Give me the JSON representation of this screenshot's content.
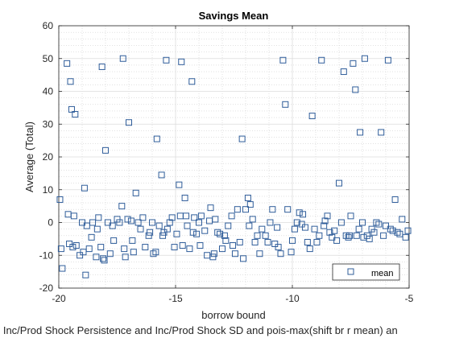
{
  "chart_data": {
    "type": "scatter",
    "title": "Savings Mean",
    "xlabel": "borrow bound",
    "ylabel": "Average (Total)",
    "footer": "d Inc/Prod Shock Persistence and Inc/Prod Shock SD and pois-max(shift br r mean) an",
    "xlim": [
      -20,
      -5
    ],
    "ylim": [
      -20,
      60
    ],
    "xticks": [
      -20,
      -15,
      -10,
      -5
    ],
    "yticks": [
      -20,
      -10,
      0,
      10,
      20,
      30,
      40,
      50,
      60
    ],
    "grid": true,
    "minor_grid": true,
    "legend": {
      "location": "bottom-right",
      "entries": [
        "mean"
      ]
    },
    "marker": "square",
    "color": "#2f5d9a",
    "series": [
      {
        "name": "mean",
        "points": [
          [
            -19.95,
            7
          ],
          [
            -19.9,
            -8
          ],
          [
            -19.85,
            -14
          ],
          [
            -19.65,
            48.5
          ],
          [
            -19.6,
            2.5
          ],
          [
            -19.55,
            -6.5
          ],
          [
            -19.5,
            43
          ],
          [
            -19.45,
            34.5
          ],
          [
            -19.4,
            -7.5
          ],
          [
            -19.35,
            2
          ],
          [
            -19.3,
            33
          ],
          [
            -19.25,
            -7
          ],
          [
            -19.1,
            -10
          ],
          [
            -19.0,
            0
          ],
          [
            -18.95,
            -9
          ],
          [
            -18.9,
            10.5
          ],
          [
            -18.85,
            -16
          ],
          [
            -18.8,
            -1
          ],
          [
            -18.7,
            -8
          ],
          [
            -18.6,
            -4.5
          ],
          [
            -18.55,
            0
          ],
          [
            -18.4,
            -10.5
          ],
          [
            -18.35,
            -2
          ],
          [
            -18.3,
            1.5
          ],
          [
            -18.2,
            -7.5
          ],
          [
            -18.15,
            47.5
          ],
          [
            -18.1,
            -11
          ],
          [
            -18.05,
            -11.5
          ],
          [
            -18.0,
            22
          ],
          [
            -17.9,
            0
          ],
          [
            -17.8,
            -9.5
          ],
          [
            -17.7,
            -1
          ],
          [
            -17.65,
            -5.5
          ],
          [
            -17.5,
            1
          ],
          [
            -17.4,
            0
          ],
          [
            -17.3,
            5
          ],
          [
            -17.25,
            50
          ],
          [
            -17.2,
            -8
          ],
          [
            -17.15,
            -10.5
          ],
          [
            -17.05,
            1
          ],
          [
            -17.0,
            30.5
          ],
          [
            -16.9,
            0.5
          ],
          [
            -16.85,
            -5.5
          ],
          [
            -16.8,
            -9
          ],
          [
            -16.7,
            9
          ],
          [
            -16.6,
            0
          ],
          [
            -16.5,
            -2
          ],
          [
            -16.4,
            1.5
          ],
          [
            -16.3,
            -7.5
          ],
          [
            -16.15,
            -4
          ],
          [
            -16.1,
            -3
          ],
          [
            -16.0,
            0
          ],
          [
            -15.95,
            -9.5
          ],
          [
            -15.85,
            -9
          ],
          [
            -15.8,
            25.5
          ],
          [
            -15.7,
            -1
          ],
          [
            -15.6,
            14.5
          ],
          [
            -15.55,
            -4
          ],
          [
            -15.5,
            -3
          ],
          [
            -15.4,
            49.5
          ],
          [
            -15.35,
            -2
          ],
          [
            -15.25,
            0
          ],
          [
            -15.15,
            1.5
          ],
          [
            -15.05,
            -7.5
          ],
          [
            -14.95,
            -3.5
          ],
          [
            -14.85,
            11.5
          ],
          [
            -14.8,
            2
          ],
          [
            -14.75,
            49
          ],
          [
            -14.7,
            -7
          ],
          [
            -14.6,
            7.5
          ],
          [
            -14.55,
            2
          ],
          [
            -14.5,
            -1
          ],
          [
            -14.4,
            -8
          ],
          [
            -14.3,
            43
          ],
          [
            -14.25,
            -3
          ],
          [
            -14.2,
            1.5
          ],
          [
            -14.1,
            -3.5
          ],
          [
            -14.0,
            0
          ],
          [
            -13.95,
            -7
          ],
          [
            -13.9,
            2
          ],
          [
            -13.75,
            -2.5
          ],
          [
            -13.65,
            -10
          ],
          [
            -13.55,
            0.5
          ],
          [
            -13.5,
            4.5
          ],
          [
            -13.4,
            -10.5
          ],
          [
            -13.35,
            -9.5
          ],
          [
            -13.3,
            1
          ],
          [
            -13.2,
            -3
          ],
          [
            -13.1,
            -3.5
          ],
          [
            -13.0,
            -8
          ],
          [
            -12.9,
            -4
          ],
          [
            -12.85,
            -5.5
          ],
          [
            -12.75,
            -1
          ],
          [
            -12.6,
            2
          ],
          [
            -12.55,
            -7
          ],
          [
            -12.45,
            -9.5
          ],
          [
            -12.35,
            4
          ],
          [
            -12.25,
            -6
          ],
          [
            -12.15,
            25.5
          ],
          [
            -12.1,
            -11
          ],
          [
            -12.0,
            4
          ],
          [
            -11.9,
            7.5
          ],
          [
            -11.85,
            -1
          ],
          [
            -11.8,
            5.5
          ],
          [
            -11.7,
            1
          ],
          [
            -11.6,
            -6
          ],
          [
            -11.5,
            -4
          ],
          [
            -11.4,
            -9.5
          ],
          [
            -11.3,
            -2
          ],
          [
            -11.15,
            -4
          ],
          [
            -11.05,
            -6
          ],
          [
            -10.95,
            0
          ],
          [
            -10.85,
            4
          ],
          [
            -10.75,
            -6.5
          ],
          [
            -10.65,
            -1.5
          ],
          [
            -10.6,
            -7.5
          ],
          [
            -10.5,
            -9.5
          ],
          [
            -10.4,
            49.5
          ],
          [
            -10.3,
            36
          ],
          [
            -10.2,
            4
          ],
          [
            -10.05,
            -9
          ],
          [
            -10.0,
            -5.5
          ],
          [
            -9.9,
            -2
          ],
          [
            -9.8,
            0
          ],
          [
            -9.7,
            3
          ],
          [
            -9.6,
            -0.5
          ],
          [
            -9.55,
            2.5
          ],
          [
            -9.45,
            -1.5
          ],
          [
            -9.35,
            -6
          ],
          [
            -9.25,
            -8
          ],
          [
            -9.15,
            32.5
          ],
          [
            -9.05,
            -2
          ],
          [
            -8.95,
            -6
          ],
          [
            -8.85,
            -4
          ],
          [
            -8.75,
            49.5
          ],
          [
            -8.65,
            -1
          ],
          [
            -8.6,
            0.5
          ],
          [
            -8.5,
            2
          ],
          [
            -8.4,
            -3
          ],
          [
            -8.3,
            -4.5
          ],
          [
            -8.2,
            -2.5
          ],
          [
            -8.1,
            -5.5
          ],
          [
            -8.0,
            12
          ],
          [
            -7.9,
            0
          ],
          [
            -7.8,
            46
          ],
          [
            -7.7,
            -4
          ],
          [
            -7.6,
            -4.5
          ],
          [
            -7.55,
            -4
          ],
          [
            -7.5,
            2
          ],
          [
            -7.4,
            48.5
          ],
          [
            -7.3,
            40.5
          ],
          [
            -7.25,
            -4
          ],
          [
            -7.15,
            -2
          ],
          [
            -7.1,
            27.5
          ],
          [
            -7.0,
            0
          ],
          [
            -6.95,
            -4.5
          ],
          [
            -6.9,
            50
          ],
          [
            -6.8,
            -4
          ],
          [
            -6.7,
            -5
          ],
          [
            -6.6,
            -2
          ],
          [
            -6.5,
            -3
          ],
          [
            -6.4,
            0
          ],
          [
            -6.3,
            -0.5
          ],
          [
            -6.2,
            27.5
          ],
          [
            -6.1,
            -4
          ],
          [
            -6.0,
            -1
          ],
          [
            -5.9,
            49.5
          ],
          [
            -5.8,
            -2
          ],
          [
            -5.7,
            -2.5
          ],
          [
            -5.6,
            7
          ],
          [
            -5.5,
            -3
          ],
          [
            -5.4,
            -3.5
          ],
          [
            -5.3,
            1
          ],
          [
            -5.15,
            -4.5
          ],
          [
            -5.05,
            -2.5
          ]
        ]
      }
    ]
  }
}
